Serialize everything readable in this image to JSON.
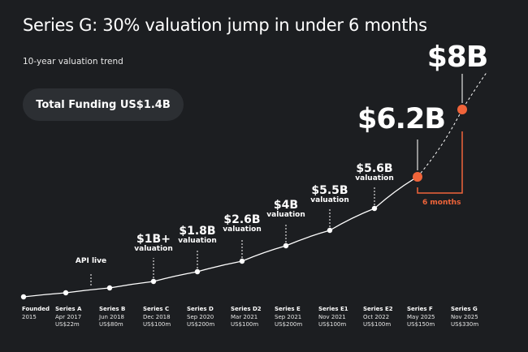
{
  "title": "Series G: 30% valuation jump in under 6 months",
  "subtitle": "10-year valuation trend",
  "total_funding": "Total Funding US$1.4B",
  "accent_color": "#f0643a",
  "chart_data": {
    "type": "line",
    "rounds": [
      {
        "name": "Founded",
        "date": "2015",
        "raised": ""
      },
      {
        "name": "Series A",
        "date": "Apr 2017",
        "raised": "US$22m"
      },
      {
        "name": "Series B",
        "date": "Jun 2018",
        "raised": "US$80m"
      },
      {
        "name": "Series C",
        "date": "Dec 2018",
        "raised": "US$100m"
      },
      {
        "name": "Series D",
        "date": "Sep 2020",
        "raised": "US$200m"
      },
      {
        "name": "Series D2",
        "date": "Mar 2021",
        "raised": "US$100m"
      },
      {
        "name": "Series E",
        "date": "Sep 2021",
        "raised": "US$200m"
      },
      {
        "name": "Series E1",
        "date": "Nov 2021",
        "raised": "US$100m"
      },
      {
        "name": "Series E2",
        "date": "Oct 2022",
        "raised": "US$100m"
      },
      {
        "name": "Series F",
        "date": "May 2025",
        "raised": "US$150m"
      },
      {
        "name": "Series G",
        "date": "Nov 2025",
        "raised": "US$330m"
      }
    ],
    "annotations": [
      {
        "label": "API live",
        "sub": ""
      },
      {
        "label": "$1B+",
        "sub": "valuation"
      },
      {
        "label": "$1.8B",
        "sub": "valuation"
      },
      {
        "label": "$2.6B",
        "sub": "valuation"
      },
      {
        "label": "$4B",
        "sub": "valuation"
      },
      {
        "label": "$5.5B",
        "sub": "valuation"
      },
      {
        "label": "$5.6B",
        "sub": "valuation"
      },
      {
        "label": "$6.2B",
        "sub": ""
      },
      {
        "label": "$8B",
        "sub": ""
      }
    ],
    "interval_label": "6 months"
  }
}
